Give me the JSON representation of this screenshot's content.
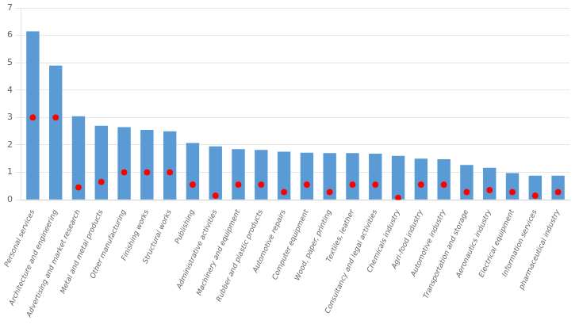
{
  "chart_data": {
    "type": "bar",
    "categories": [
      "Personal services",
      "Architecture and engineering",
      "Advertising and market research",
      "Metal and metal products",
      "Other manufacturing",
      "Finishing works",
      "Structural works",
      "Publishing",
      "Administrative activities",
      "Machinery and equipment",
      "Rubber and plastic products",
      "Automotive repairs",
      "Computer equipment",
      "Wood, paper, printing",
      "Textiles, leather",
      "Consultancy and legal activities",
      "Chemicals industry",
      "Agri-food industry",
      "Automotive industry",
      "Transportation and storage",
      "Aeronautics industry",
      "Electrical equipment",
      "Information services",
      "pharmaceutical industry"
    ],
    "series": [
      {
        "type": "bar",
        "color": "#5B9BD5",
        "values": [
          6.15,
          4.9,
          3.05,
          2.7,
          2.65,
          2.55,
          2.5,
          2.07,
          1.95,
          1.85,
          1.82,
          1.75,
          1.72,
          1.7,
          1.7,
          1.68,
          1.6,
          1.5,
          1.48,
          1.27,
          1.17,
          0.97,
          0.88,
          0.88
        ]
      },
      {
        "type": "scatter",
        "color": "#FF0000",
        "values": [
          3.0,
          3.0,
          0.45,
          0.65,
          1.0,
          1.0,
          1.0,
          0.55,
          0.15,
          0.55,
          0.55,
          0.28,
          0.55,
          0.28,
          0.55,
          0.55,
          0.07,
          0.55,
          0.55,
          0.28,
          0.35,
          0.28,
          0.15,
          0.28
        ]
      }
    ],
    "ylim": [
      0,
      7
    ],
    "yticks": [
      0,
      1,
      2,
      3,
      4,
      5,
      6,
      7
    ],
    "grid": true
  }
}
